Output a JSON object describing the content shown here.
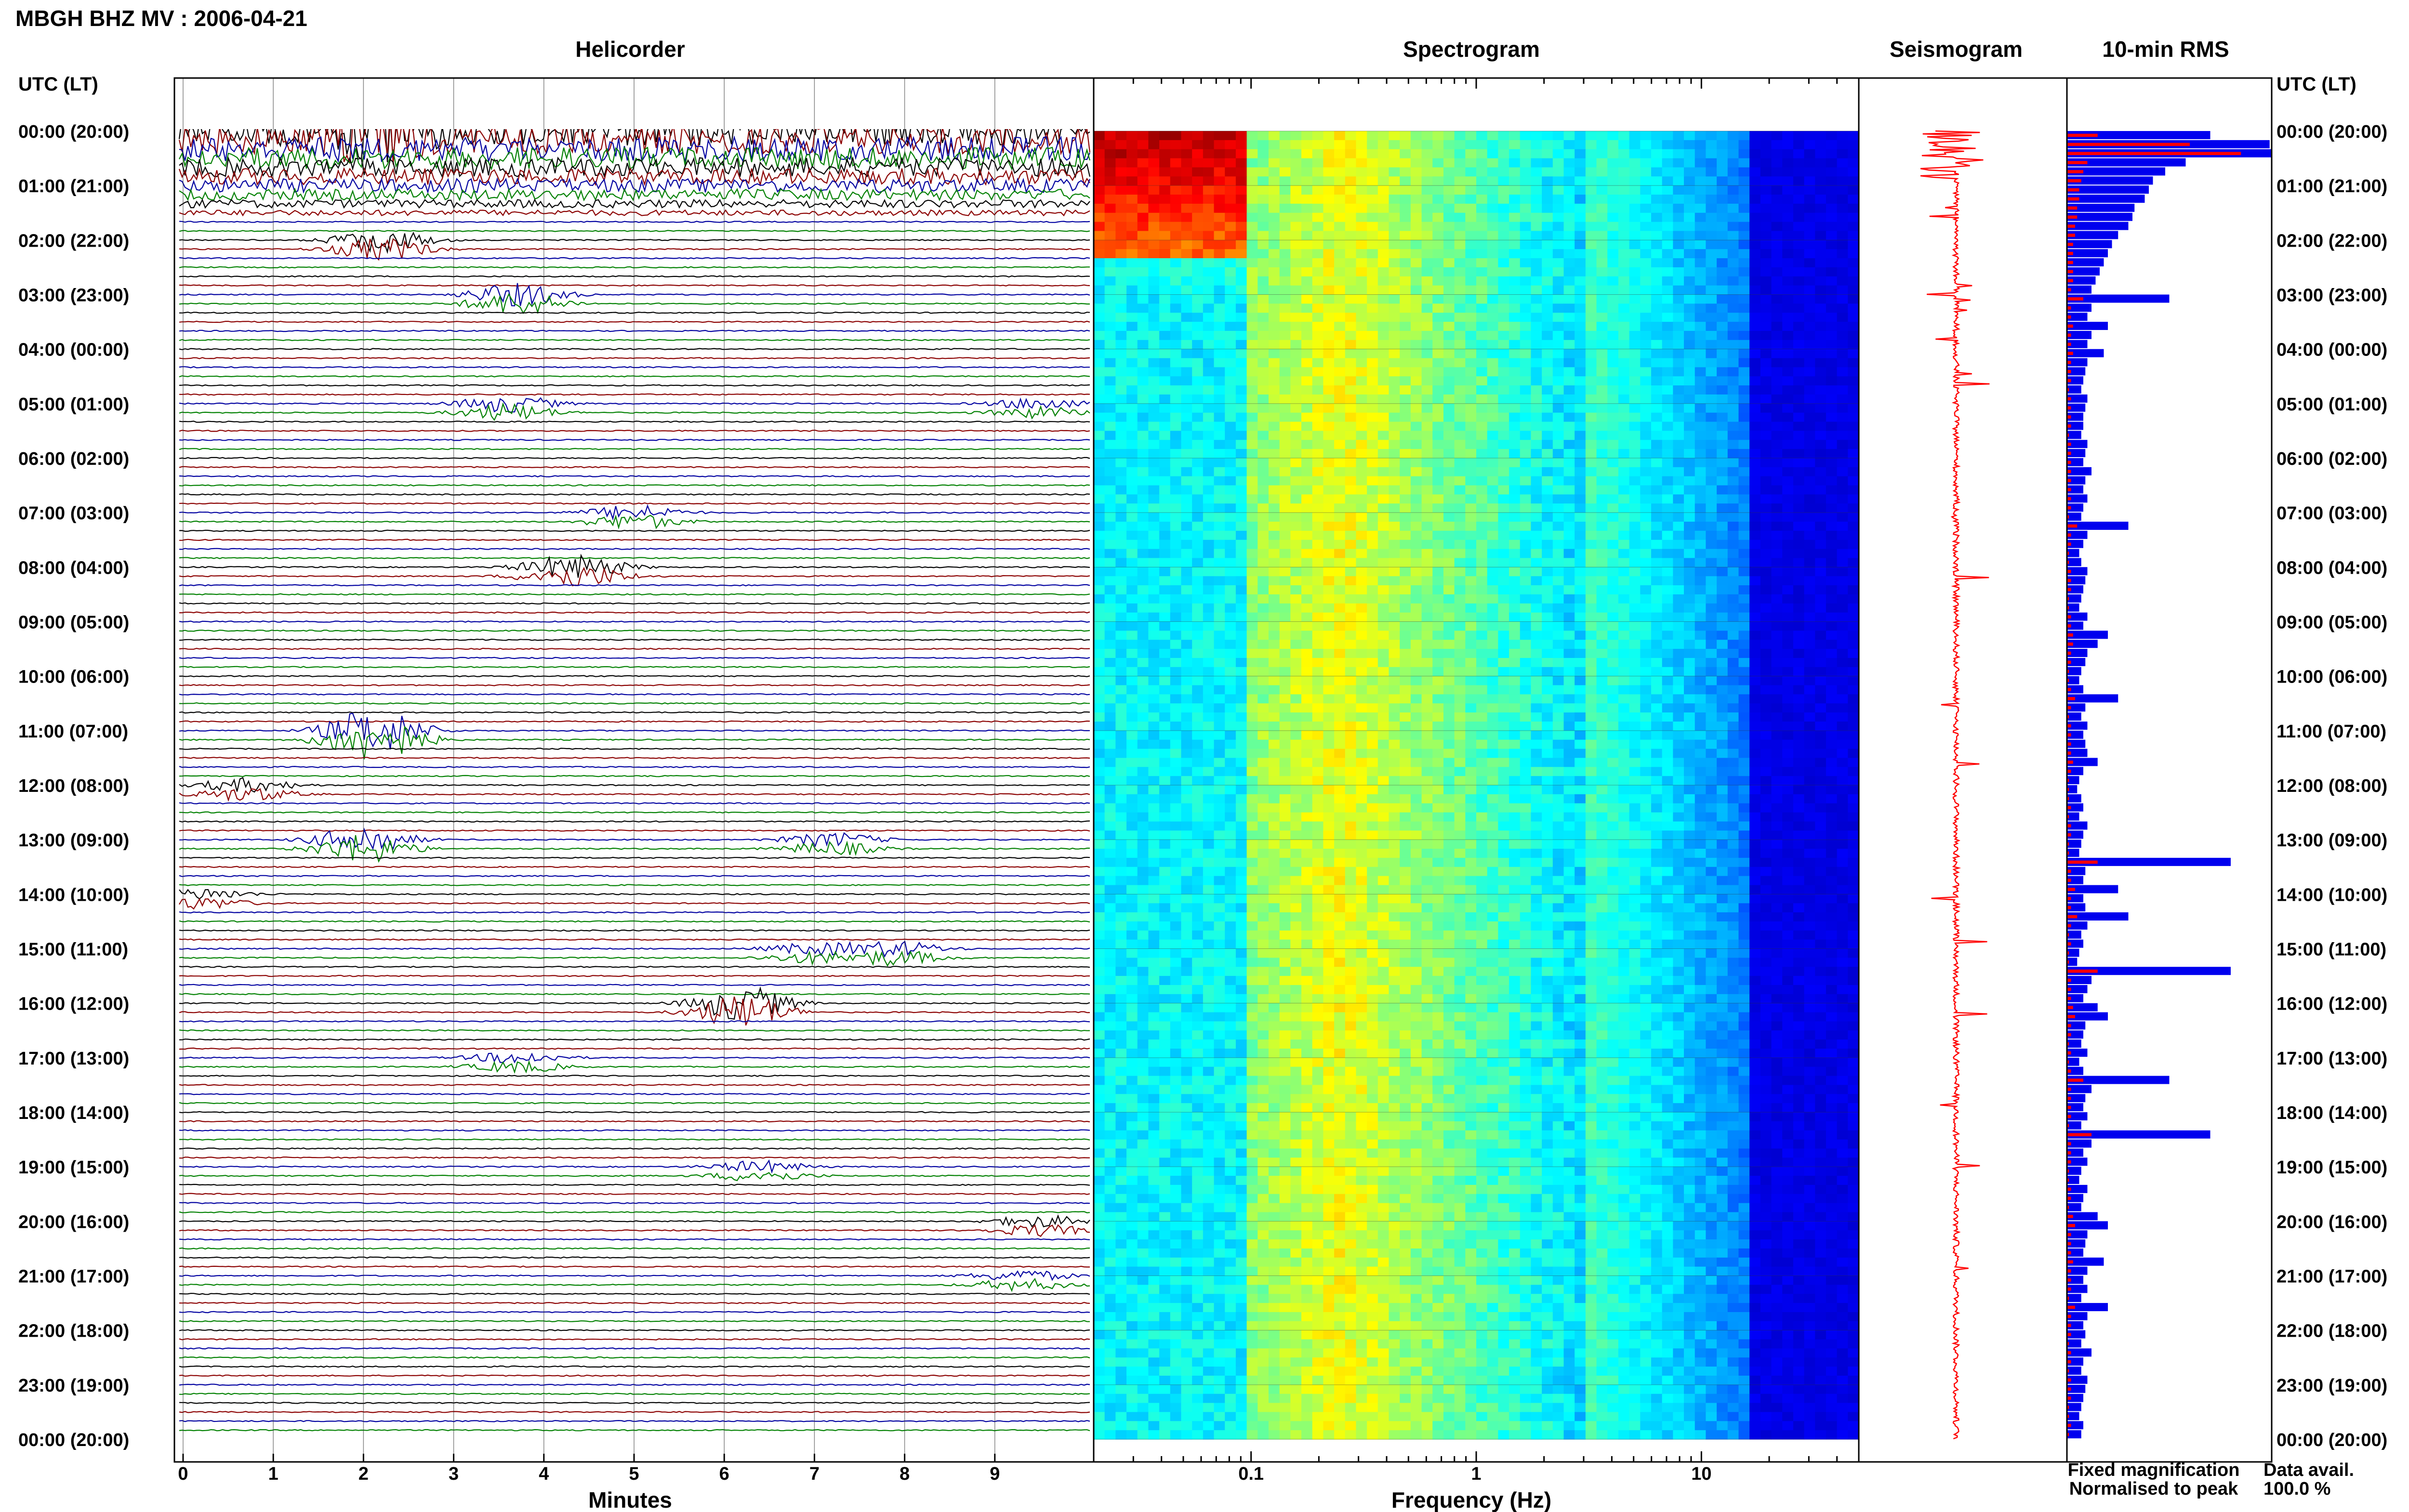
{
  "title": "MBGH BHZ MV : 2006-04-21",
  "panels": {
    "helicorder": "Helicorder",
    "spectrogram": "Spectrogram",
    "seismogram": "Seismogram",
    "rms": "10-min RMS"
  },
  "time_header": "UTC (LT)",
  "hour_labels": [
    "00:00 (20:00)",
    "01:00 (21:00)",
    "02:00 (22:00)",
    "03:00 (23:00)",
    "04:00 (00:00)",
    "05:00 (01:00)",
    "06:00 (02:00)",
    "07:00 (03:00)",
    "08:00 (04:00)",
    "09:00 (05:00)",
    "10:00 (06:00)",
    "11:00 (07:00)",
    "12:00 (08:00)",
    "13:00 (09:00)",
    "14:00 (10:00)",
    "15:00 (11:00)",
    "16:00 (12:00)",
    "17:00 (13:00)",
    "18:00 (14:00)",
    "19:00 (15:00)",
    "20:00 (16:00)",
    "21:00 (17:00)",
    "22:00 (18:00)",
    "23:00 (19:00)",
    "00:00 (20:00)"
  ],
  "helicorder_xlabel": "Minutes",
  "helicorder_ticks": [
    "0",
    "1",
    "2",
    "3",
    "4",
    "5",
    "6",
    "7",
    "8",
    "9"
  ],
  "spectrogram_xlabel": "Frequency (Hz)",
  "spectrogram_ticks": [
    "0.1",
    "1",
    "10"
  ],
  "legend": {
    "fixed": "Fixed magnification",
    "normalised": "Normalised to peak",
    "fixed_color": "#1010e0",
    "normalised_color": "#ff1010"
  },
  "data_avail_label": "Data avail.",
  "data_avail_value": "100.0 %",
  "colors": {
    "trace": [
      "#000000",
      "#8b0000",
      "#0000a0",
      "#008000"
    ],
    "rms_fixed": "#0000ee",
    "rms_normalised": "#ff0000",
    "seismogram": "#ff0000"
  },
  "chart_data": {
    "type": "heatmap",
    "helicorder": {
      "minutes_per_line": 10,
      "lines": 144,
      "events": [
        {
          "hour": 0,
          "minute": 2.2,
          "amp": 3.0
        },
        {
          "hour": 2,
          "minute": 2.2,
          "amp": 2.0
        },
        {
          "hour": 3,
          "minute": 3.7,
          "amp": 2.0
        },
        {
          "hour": 5,
          "minute": 3.6,
          "amp": 1.5
        },
        {
          "hour": 5,
          "minute": 9.5,
          "amp": 1.0
        },
        {
          "hour": 7,
          "minute": 5.0,
          "amp": 1.3
        },
        {
          "hour": 8,
          "minute": 4.5,
          "amp": 1.0
        },
        {
          "hour": 8,
          "minute": 4.2,
          "amp": 1.2
        },
        {
          "hour": 11,
          "minute": 2.2,
          "amp": 2.5
        },
        {
          "hour": 11,
          "minute": 2.0,
          "amp": 1.5
        },
        {
          "hour": 12,
          "minute": 0.7,
          "amp": 1.2
        },
        {
          "hour": 13,
          "minute": 2.0,
          "amp": 2.5
        },
        {
          "hour": 13,
          "minute": 7.2,
          "amp": 1.2
        },
        {
          "hour": 14,
          "minute": 0.2,
          "amp": 1.0
        },
        {
          "hour": 15,
          "minute": 7.0,
          "amp": 1.0
        },
        {
          "hour": 15,
          "minute": 7.9,
          "amp": 1.3
        },
        {
          "hour": 16,
          "minute": 6.2,
          "amp": 3.0
        },
        {
          "hour": 17,
          "minute": 3.7,
          "amp": 1.0
        },
        {
          "hour": 19,
          "minute": 6.4,
          "amp": 1.0
        },
        {
          "hour": 20,
          "minute": 9.5,
          "amp": 1.0
        },
        {
          "hour": 21,
          "minute": 9.3,
          "amp": 1.0
        }
      ]
    },
    "spectrogram": {
      "x_scale": "log",
      "xlim_hz": [
        0.02,
        50
      ],
      "colormap": "jet"
    },
    "rms": {
      "interval_minutes": 10,
      "xlim": [
        0,
        100
      ],
      "fixed": [
        70,
        99,
        100,
        58,
        48,
        42,
        40,
        38,
        33,
        32,
        30,
        25,
        22,
        20,
        18,
        16,
        14,
        12,
        50,
        12,
        10,
        20,
        12,
        10,
        18,
        10,
        9,
        8,
        7,
        10,
        9,
        8,
        8,
        7,
        10,
        9,
        8,
        12,
        9,
        8,
        10,
        8,
        7,
        30,
        10,
        8,
        6,
        7,
        10,
        9,
        8,
        7,
        6,
        10,
        8,
        20,
        15,
        10,
        9,
        7,
        6,
        8,
        25,
        9,
        7,
        10,
        8,
        9,
        10,
        15,
        8,
        6,
        5,
        7,
        8,
        6,
        10,
        8,
        7,
        6,
        80,
        9,
        8,
        25,
        8,
        9,
        30,
        10,
        7,
        8,
        6,
        5,
        80,
        12,
        10,
        8,
        15,
        20,
        9,
        8,
        7,
        10,
        6,
        8,
        50,
        12,
        9,
        8,
        10,
        7,
        70,
        12,
        8,
        10,
        7,
        6,
        10,
        8,
        7,
        15,
        20,
        10,
        9,
        8,
        18,
        10,
        8,
        10,
        7,
        20,
        10,
        8,
        9,
        7,
        12,
        8,
        7,
        10,
        9,
        8,
        7,
        6,
        8,
        7
      ],
      "normalised": [
        15,
        60,
        85,
        10,
        8,
        7,
        6,
        6,
        5,
        5,
        4,
        4,
        3,
        3,
        3,
        3,
        3,
        2,
        8,
        2,
        2,
        3,
        2,
        2,
        3,
        2,
        2,
        2,
        1,
        2,
        2,
        2,
        2,
        1,
        2,
        2,
        2,
        2,
        2,
        2,
        2,
        2,
        1,
        5,
        2,
        2,
        1,
        1,
        2,
        2,
        2,
        1,
        1,
        2,
        2,
        3,
        3,
        2,
        2,
        1,
        1,
        2,
        4,
        2,
        1,
        2,
        2,
        2,
        2,
        3,
        2,
        1,
        1,
        1,
        2,
        1,
        2,
        2,
        1,
        1,
        15,
        2,
        2,
        4,
        2,
        2,
        5,
        2,
        1,
        2,
        1,
        1,
        15,
        2,
        2,
        2,
        3,
        4,
        2,
        2,
        1,
        2,
        1,
        2,
        8,
        2,
        2,
        2,
        2,
        1,
        12,
        2,
        2,
        2,
        1,
        1,
        2,
        2,
        1,
        3,
        4,
        2,
        2,
        2,
        3,
        2,
        2,
        2,
        1,
        4,
        2,
        2,
        2,
        1,
        2,
        2,
        1,
        2,
        2,
        2,
        1,
        1,
        2,
        1
      ]
    }
  }
}
